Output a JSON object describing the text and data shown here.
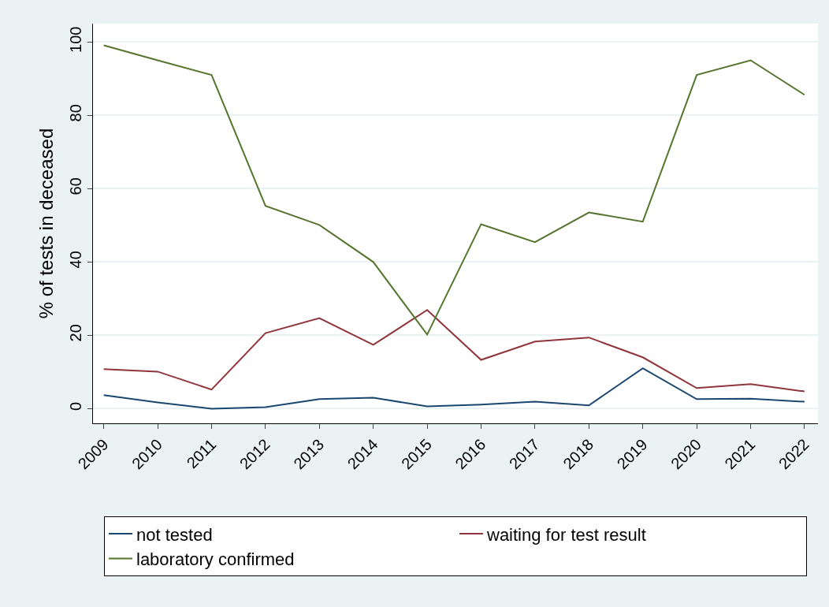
{
  "chart_data": {
    "type": "line",
    "ylabel": "% of tests in deceased",
    "categories": [
      "2009",
      "2010",
      "2011",
      "2012",
      "2013",
      "2014",
      "2015",
      "2016",
      "2017",
      "2018",
      "2019",
      "2020",
      "2021",
      "2022"
    ],
    "series": [
      {
        "name": "not tested",
        "color": "#1a476f",
        "values": [
          3.7,
          1.7,
          0,
          0.4,
          2.6,
          3,
          0.6,
          1.1,
          1.9,
          0.9,
          11,
          2.6,
          2.7,
          1.9
        ]
      },
      {
        "name": "waiting for test result",
        "color": "#90353b",
        "values": [
          10.8,
          10.1,
          5.2,
          20.6,
          24.7,
          17.4,
          26.9,
          13.3,
          18.3,
          19.4,
          14,
          5.6,
          6.7,
          4.7
        ]
      },
      {
        "name": "laboratory confirmed",
        "color": "#55752f",
        "values": [
          99.1,
          95,
          91,
          55.3,
          50.1,
          40,
          20.2,
          50.3,
          45.4,
          53.5,
          51,
          91,
          95,
          85.6
        ]
      }
    ],
    "ylim": [
      -4,
      105
    ],
    "yticks": [
      0,
      20,
      40,
      60,
      80,
      100
    ],
    "grid": "y",
    "legend": "bottom",
    "marker": "none",
    "line_style": "solid"
  }
}
